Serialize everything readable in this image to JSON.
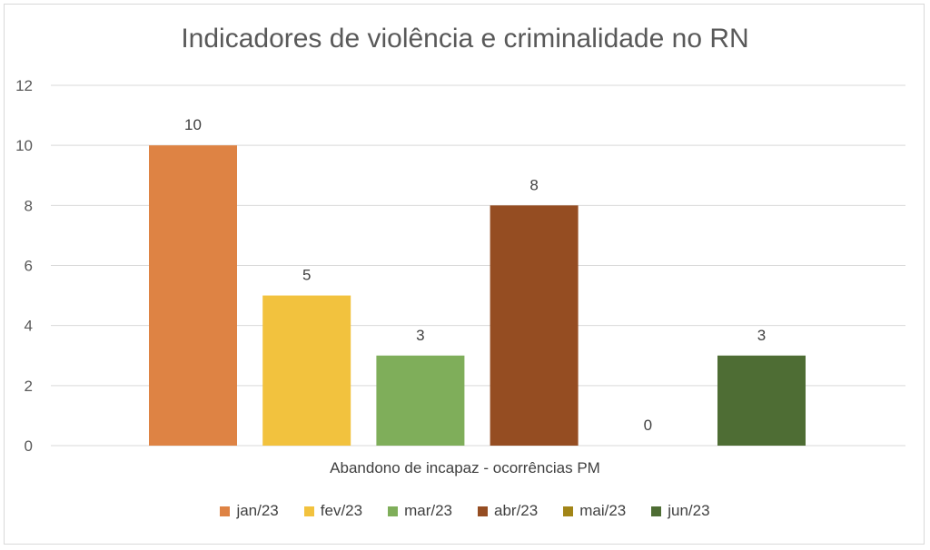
{
  "chart_data": {
    "type": "bar",
    "title": "Indicadores de violência e criminalidade no RN",
    "xlabel": "Abandono de incapaz - ocorrências PM",
    "ylabel": "",
    "ylim": [
      0,
      12
    ],
    "yticks": [
      "0",
      "2",
      "4",
      "6",
      "8",
      "10",
      "12"
    ],
    "grid": true,
    "legend_position": "bottom",
    "series": [
      {
        "name": "jan/23",
        "value": 10,
        "color": "#DE8344"
      },
      {
        "name": "fev/23",
        "value": 5,
        "color": "#F2C23E"
      },
      {
        "name": "mar/23",
        "value": 3,
        "color": "#7FAE5A"
      },
      {
        "name": "abr/23",
        "value": 8,
        "color": "#954D22"
      },
      {
        "name": "mai/23",
        "value": 0,
        "color": "#A28517"
      },
      {
        "name": "jun/23",
        "value": 3,
        "color": "#4E6D34"
      }
    ]
  }
}
